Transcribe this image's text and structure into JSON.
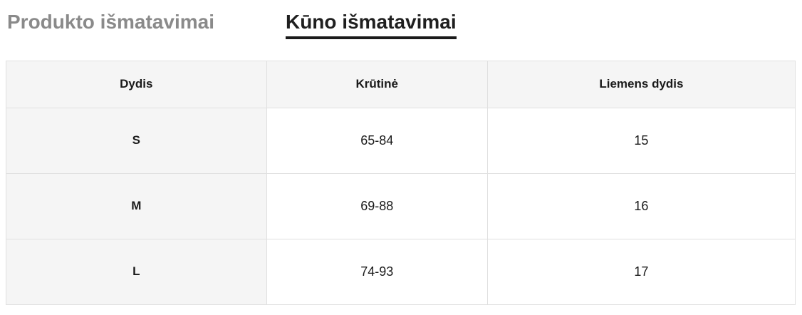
{
  "tabs": {
    "product": {
      "label": "Produkto išmatavimai",
      "active": false
    },
    "body": {
      "label": "Kūno išmatavimai",
      "active": true
    }
  },
  "table": {
    "headers": [
      "Dydis",
      "Krūtinė",
      "Liemens dydis"
    ],
    "rows": [
      [
        "S",
        "65-84",
        "15"
      ],
      [
        "M",
        "69-88",
        "16"
      ],
      [
        "L",
        "74-93",
        "17"
      ]
    ]
  },
  "colors": {
    "active_tab_text": "#1f1f1f",
    "active_tab_underline": "#1a1a1a",
    "inactive_tab_text": "#8a8a8a",
    "header_bg": "#f5f5f5",
    "border": "#e0e0e0",
    "cell_text": "#1a1a1a",
    "page_bg": "#ffffff"
  }
}
